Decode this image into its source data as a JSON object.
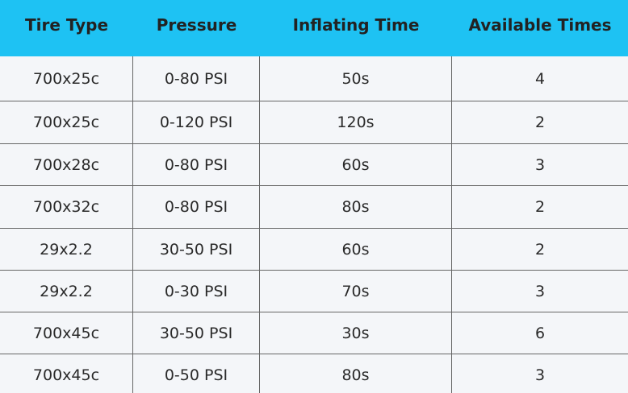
{
  "table": {
    "header": [
      "Tire Type",
      "Pressure",
      "Inflating Time",
      "Available Times"
    ],
    "rows": [
      [
        "700x25c",
        "0-80 PSI",
        "50s",
        4
      ],
      [
        "700x25c",
        "0-120 PSI",
        "120s",
        2
      ],
      [
        "700x28c",
        "0-80 PSI",
        "60s",
        3
      ],
      [
        "700x32c",
        "0-80 PSI",
        "80s",
        2
      ],
      [
        "29x2.2",
        "30-50 PSI",
        "60s",
        2
      ],
      [
        "29x2.2",
        "0-30 PSI",
        "70s",
        3
      ],
      [
        "700x45c",
        "30-50 PSI",
        "30s",
        6
      ],
      [
        "700x45c",
        "0-50 PSI",
        "80s",
        3
      ]
    ]
  }
}
